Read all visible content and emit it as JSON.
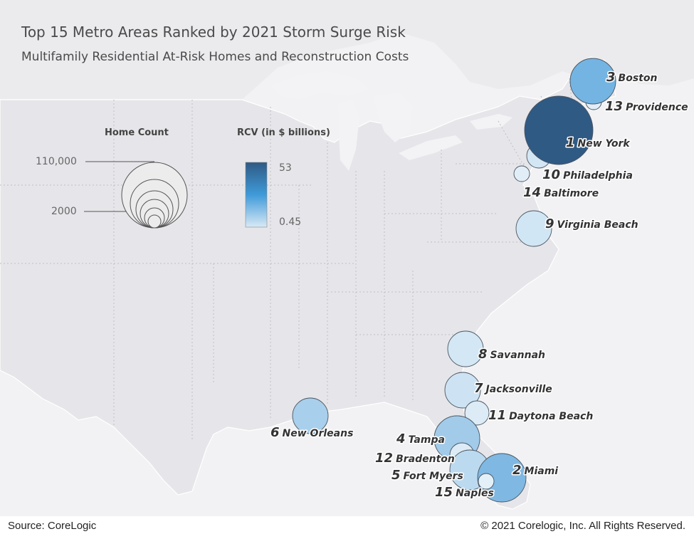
{
  "title": "Top 15 Metro Areas Ranked by 2021 Storm Surge Risk",
  "subtitle": "Multifamily Residential At-Risk Homes and Reconstruction Costs",
  "legend": {
    "size": {
      "title": "Home Count",
      "max_label": "110,000",
      "min_label": "2000",
      "max_value": 110000,
      "min_value": 2000
    },
    "color": {
      "title": "RCV (in $ billions)",
      "max_label": "53",
      "min_label": "0.45",
      "max_value": 53,
      "min_value": 0.45,
      "color_high": "#2f5a84",
      "color_low": "#d8e9f5"
    }
  },
  "metros": [
    {
      "rank": "1",
      "name": "New York",
      "color": "#2f5a84"
    },
    {
      "rank": "2",
      "name": "Miami",
      "color": "#7fb8e2"
    },
    {
      "rank": "3",
      "name": "Boston",
      "color": "#74b4e2"
    },
    {
      "rank": "4",
      "name": "Tampa",
      "color": "#a2cbea"
    },
    {
      "rank": "5",
      "name": "Fort Myers",
      "color": "#bcdaef"
    },
    {
      "rank": "6",
      "name": "New Orleans",
      "color": "#a8cfeb"
    },
    {
      "rank": "7",
      "name": "Jacksonville",
      "color": "#cde3f3"
    },
    {
      "rank": "8",
      "name": "Savannah",
      "color": "#d3e7f4"
    },
    {
      "rank": "9",
      "name": "Virginia Beach",
      "color": "#d1e6f4"
    },
    {
      "rank": "10",
      "name": "Philadelphia",
      "color": "#d3e6f4"
    },
    {
      "rank": "11",
      "name": "Daytona Beach",
      "color": "#dcebf5"
    },
    {
      "rank": "12",
      "name": "Bradenton",
      "color": "#dcebf5"
    },
    {
      "rank": "13",
      "name": "Providence",
      "color": "#e1eef7"
    },
    {
      "rank": "14",
      "name": "Baltimore",
      "color": "#e1eef7"
    },
    {
      "rank": "15",
      "name": "Naples",
      "color": "#e4f0f8"
    }
  ],
  "footer": {
    "source": "Source: CoreLogic",
    "copyright": "© 2021 Corelogic, Inc. All Rights Reserved."
  }
}
